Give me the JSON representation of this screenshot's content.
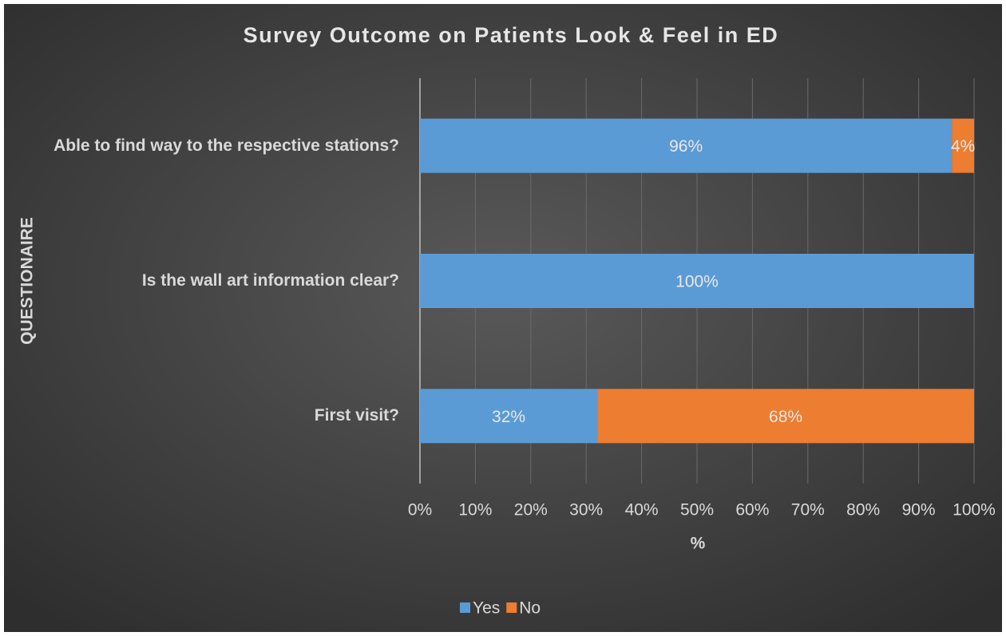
{
  "chart_data": {
    "type": "stacked_barh",
    "title": "Survey Outcome on Patients Look & Feel in ED",
    "xlabel": "%",
    "ylabel": "QUESTIONAIRE",
    "categories": [
      "Able to find way to the respective stations?",
      "Is the wall art information clear?",
      "First visit?"
    ],
    "series": [
      {
        "name": "Yes",
        "color": "#5b9bd5",
        "values": [
          96,
          100,
          32
        ],
        "value_labels": [
          "96%",
          "100%",
          "32%"
        ]
      },
      {
        "name": "No",
        "color": "#ed7d31",
        "values": [
          4,
          null,
          68
        ],
        "value_labels": [
          "4%",
          null,
          "68%"
        ]
      }
    ],
    "xlim": [
      0,
      100
    ],
    "xticks": [
      {
        "value": 0,
        "label": "0%"
      },
      {
        "value": 10,
        "label": "10%"
      },
      {
        "value": 20,
        "label": "20%"
      },
      {
        "value": 30,
        "label": "30%"
      },
      {
        "value": 40,
        "label": "40%"
      },
      {
        "value": 50,
        "label": "50%"
      },
      {
        "value": 60,
        "label": "60%"
      },
      {
        "value": 70,
        "label": "70%"
      },
      {
        "value": 80,
        "label": "80%"
      },
      {
        "value": 90,
        "label": "90%"
      },
      {
        "value": 100,
        "label": "100%"
      }
    ],
    "grid": true,
    "legend": "bottom"
  }
}
